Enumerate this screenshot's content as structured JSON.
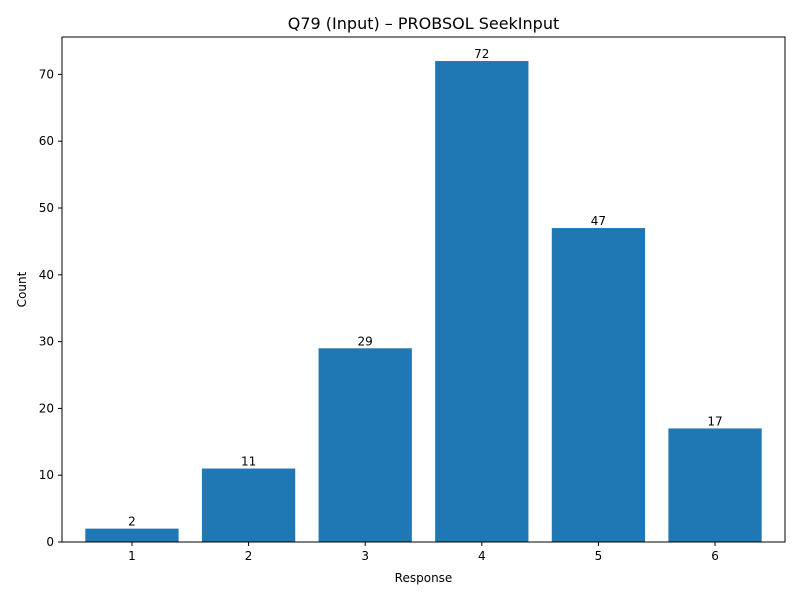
{
  "chart_data": {
    "type": "bar",
    "title": "Q79 (Input) – PROBSOL SeekInput",
    "xlabel": "Response",
    "ylabel": "Count",
    "categories": [
      "1",
      "2",
      "3",
      "4",
      "5",
      "6"
    ],
    "values": [
      2,
      11,
      29,
      72,
      47,
      17
    ],
    "data_labels": [
      "2",
      "11",
      "29",
      "72",
      "47",
      "17"
    ],
    "ylim": [
      0,
      75.6
    ],
    "yticks": [
      0,
      10,
      20,
      30,
      40,
      50,
      60,
      70
    ],
    "ytick_labels": [
      "0",
      "10",
      "20",
      "30",
      "40",
      "50",
      "60",
      "70"
    ],
    "bar_color": "#1f77b4",
    "grid": false,
    "legend": "none"
  }
}
